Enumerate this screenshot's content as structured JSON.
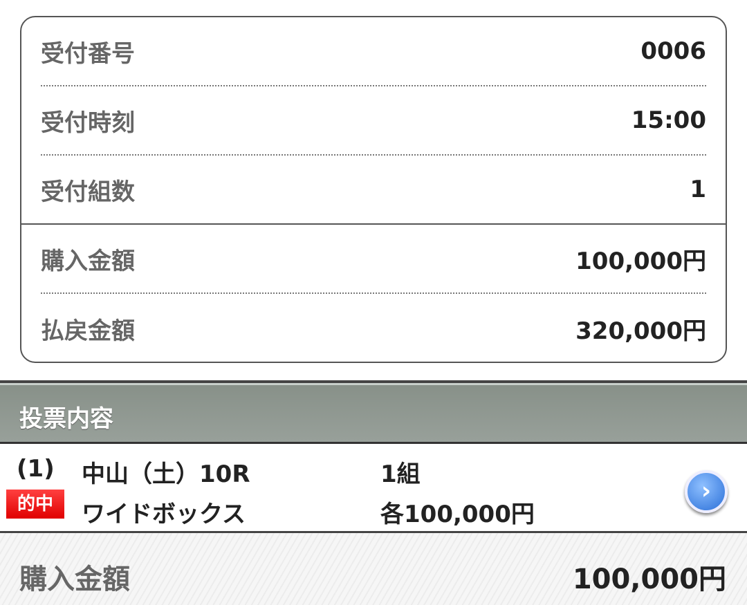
{
  "receipt": [
    {
      "label": "受付番号",
      "value": "0006"
    },
    {
      "label": "受付時刻",
      "value": "15:00"
    },
    {
      "label": "受付組数",
      "value": "1"
    },
    {
      "label": "購入金額",
      "value": "100,000円"
    },
    {
      "label": "払戻金額",
      "value": "320,000円"
    }
  ],
  "section_title": "投票内容",
  "bet": {
    "index": "(1)",
    "race": "中山（土）10R",
    "combos": "1組",
    "badge": "的中",
    "type": "ワイドボックス",
    "amount": "各100,000円",
    "badge_color": "#e00000"
  },
  "footer": {
    "label": "購入金額",
    "value": "100,000円"
  }
}
